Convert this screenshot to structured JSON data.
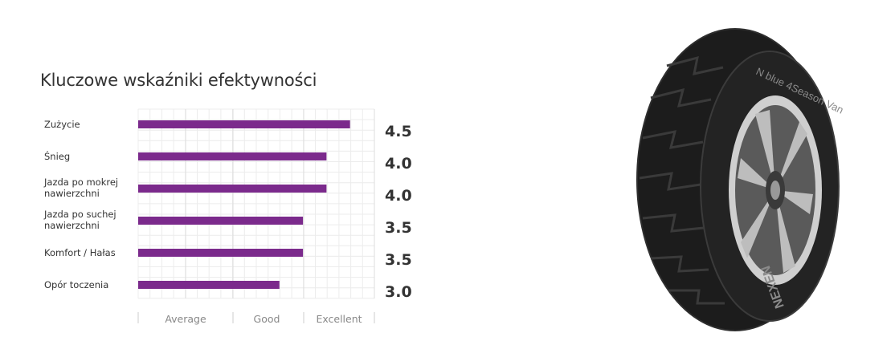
{
  "chart_data": {
    "type": "bar",
    "orientation": "horizontal",
    "title": "Kluczowe wskaźniki efektywności",
    "categories": [
      [
        "Zużycie"
      ],
      [
        "Śnieg"
      ],
      [
        "Jazda po mokrej",
        "nawierzchni"
      ],
      [
        "Jazda po suchej",
        "nawierzchni"
      ],
      [
        "Komfort / Hałas"
      ],
      [
        "Opór toczenia"
      ]
    ],
    "values": [
      4.5,
      4.0,
      4.0,
      3.5,
      3.5,
      3.0
    ],
    "value_labels": [
      "4.5",
      "4.0",
      "4.0",
      "3.5",
      "3.5",
      "3.0"
    ],
    "xlim": [
      0,
      5
    ],
    "scale_labels": [
      "Average",
      "Good",
      "Excellent"
    ],
    "grid": true,
    "bar_color": "#7b2a8c",
    "grid_color": "#ececec"
  },
  "image": {
    "tire_icon": "tire-image",
    "brand_text": "NEXEN",
    "model_text": "N blue 4Season Van"
  }
}
